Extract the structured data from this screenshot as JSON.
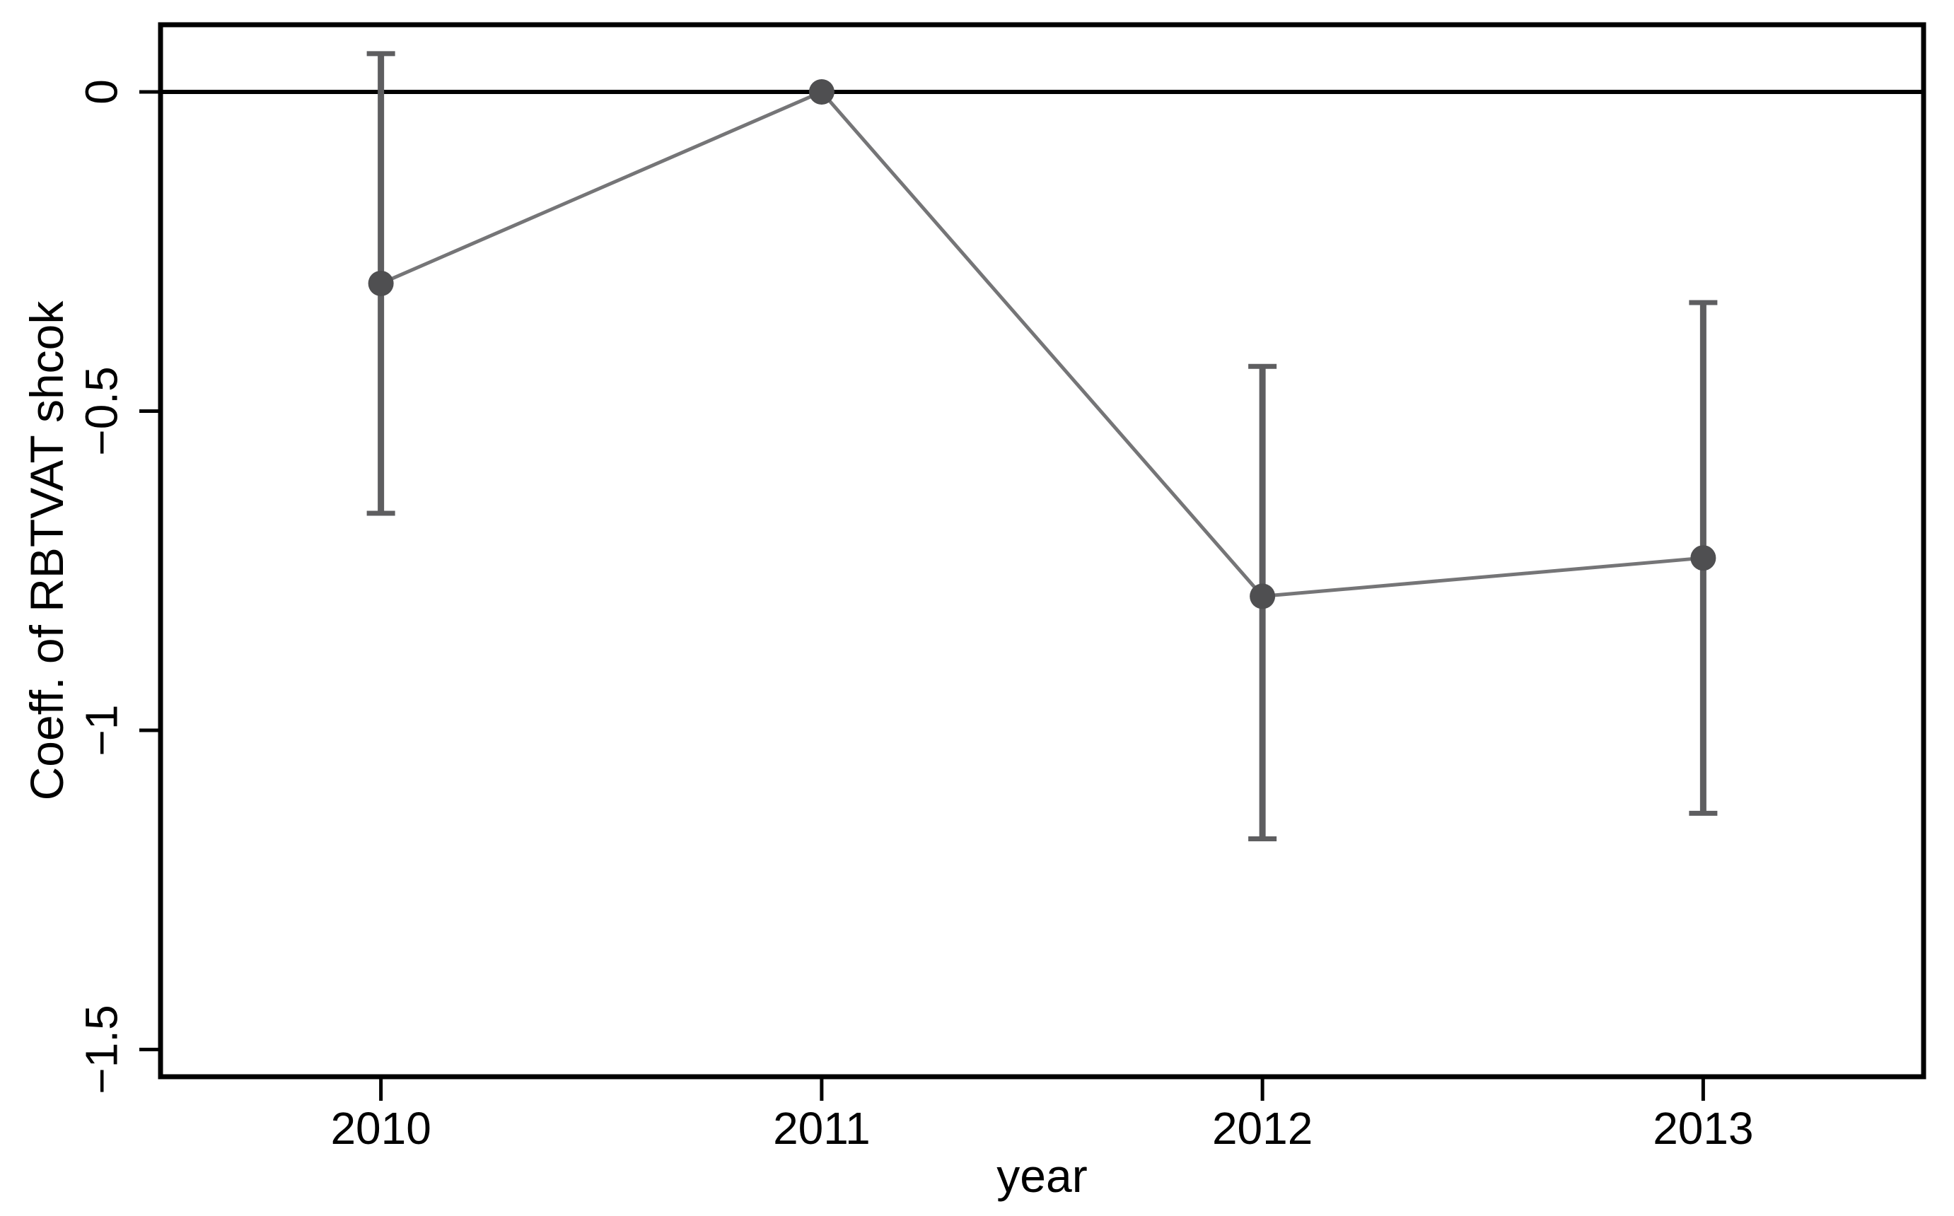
{
  "figure": {
    "background": "#ffffff"
  },
  "chart_data": {
    "type": "line",
    "subtype": "coefficient-plot-with-error-bars",
    "title": "",
    "xlabel": "year",
    "ylabel": "Coeff. of RBTVAT shcok",
    "categories": [
      "2010",
      "2011",
      "2012",
      "2013"
    ],
    "series": [
      {
        "name": "Coeff. of RBTVAT shcok",
        "values": [
          -0.3,
          0.0,
          -0.79,
          -0.73
        ],
        "ci_high": [
          0.06,
          null,
          -0.43,
          -0.33
        ],
        "ci_low": [
          -0.66,
          null,
          -1.17,
          -1.13
        ]
      }
    ],
    "ylim": [
      -1.54,
      0.1
    ],
    "yticks": [
      {
        "value": 0,
        "label": "0"
      },
      {
        "value": -0.5,
        "label": "−0.5"
      },
      {
        "value": -1,
        "label": "−1"
      },
      {
        "value": -1.5,
        "label": "−1.5"
      }
    ],
    "zero_line": true,
    "grid": false,
    "legend": false,
    "marker": "circle",
    "colors": {
      "marker": "#4f4f51",
      "error_bar": "#5e5e60",
      "line": "#757577",
      "axis": "#000000",
      "text": "#000000",
      "background": "#ffffff"
    }
  }
}
